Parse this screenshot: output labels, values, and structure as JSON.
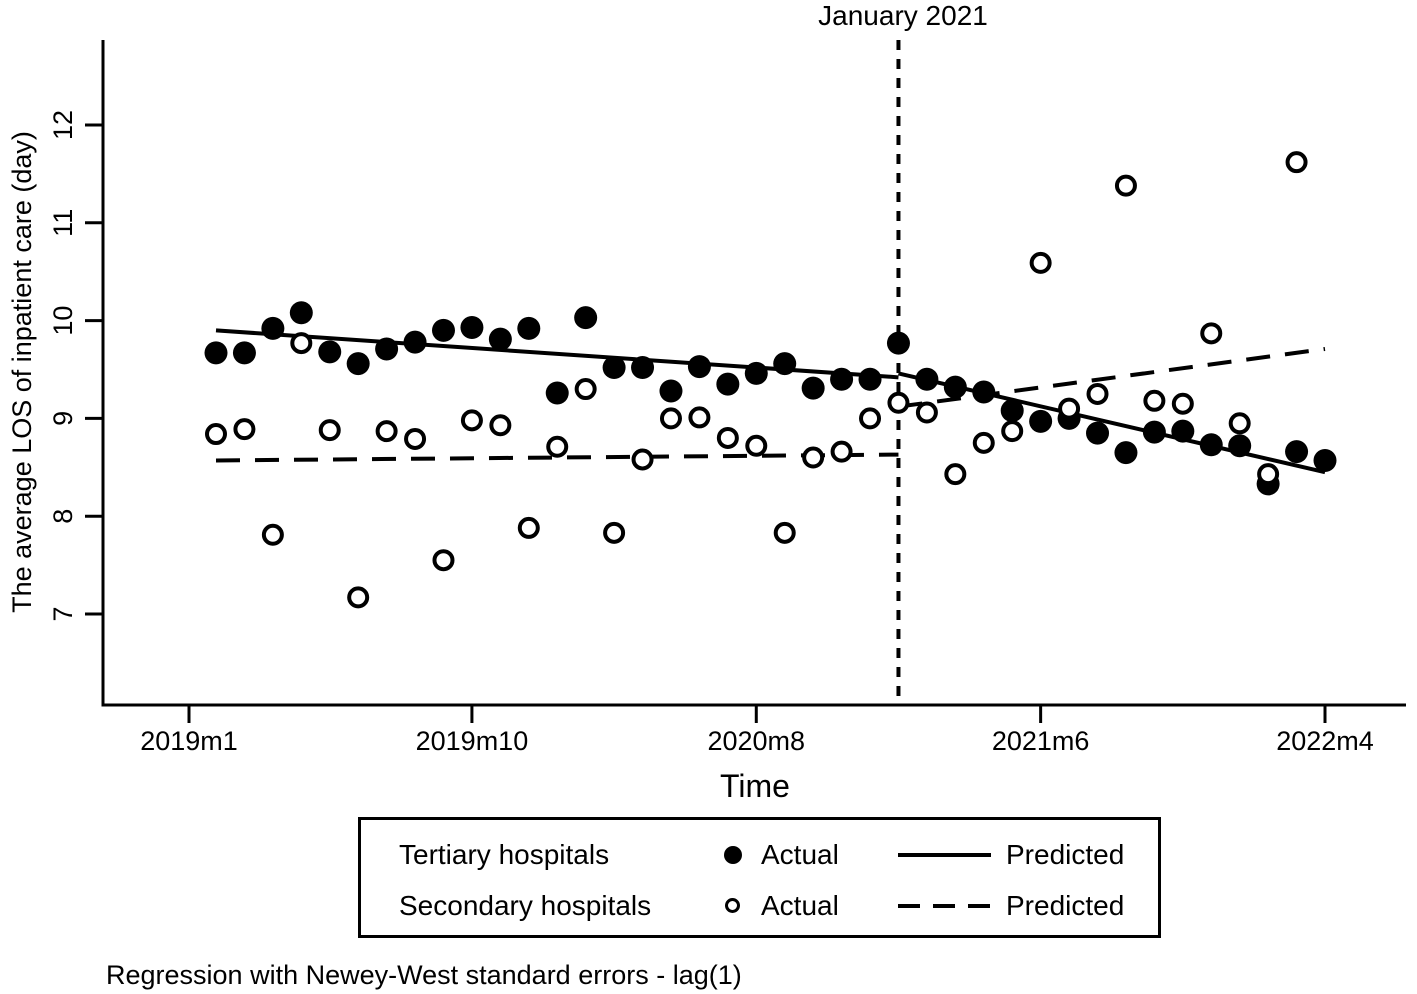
{
  "annotation": {
    "vline_label": "January 2021"
  },
  "axes": {
    "y_title": "The average LOS of inpatient care (day)",
    "x_title": "Time"
  },
  "legend": {
    "rows": [
      {
        "series": "Tertiary hospitals",
        "marker": "filled-circle",
        "actual": "Actual",
        "line": "solid",
        "predicted": "Predicted"
      },
      {
        "series": "Secondary hospitals",
        "marker": "open-circle",
        "actual": "Actual",
        "line": "dashed",
        "predicted": "Predicted"
      }
    ]
  },
  "note": "Regression with Newey-West standard errors - lag(1)",
  "colors": {
    "ink": "#000000",
    "background": "#ffffff"
  },
  "chart_data": {
    "type": "scatter",
    "x_unit": "monthly date",
    "months": [
      "2019m1",
      "2019m2",
      "2019m3",
      "2019m4",
      "2019m5",
      "2019m6",
      "2019m7",
      "2019m8",
      "2019m9",
      "2019m10",
      "2019m11",
      "2019m12",
      "2020m1",
      "2020m2",
      "2020m3",
      "2020m4",
      "2020m5",
      "2020m6",
      "2020m7",
      "2020m8",
      "2020m9",
      "2020m10",
      "2020m11",
      "2020m12",
      "2021m1",
      "2021m2",
      "2021m3",
      "2021m4",
      "2021m5",
      "2021m6",
      "2021m7",
      "2021m8",
      "2021m9",
      "2021m10",
      "2021m11",
      "2021m12",
      "2022m1",
      "2022m2",
      "2022m3",
      "2022m4"
    ],
    "series": [
      {
        "name": "Tertiary hospitals - Actual",
        "marker": "filled",
        "values": [
          9.67,
          9.67,
          9.92,
          10.08,
          9.68,
          9.56,
          9.71,
          9.78,
          9.9,
          9.93,
          9.81,
          9.92,
          9.26,
          10.03,
          9.52,
          9.52,
          9.28,
          9.53,
          9.35,
          9.46,
          9.56,
          9.31,
          9.4,
          9.4,
          9.77,
          9.4,
          9.32,
          9.27,
          9.08,
          8.97,
          9.0,
          8.85,
          8.65,
          8.86,
          8.87,
          8.73,
          8.72,
          8.33,
          8.66,
          8.57
        ]
      },
      {
        "name": "Secondary hospitals - Actual",
        "marker": "open",
        "values": [
          8.84,
          8.89,
          7.81,
          9.77,
          8.88,
          7.17,
          8.87,
          8.79,
          7.55,
          8.98,
          8.93,
          7.88,
          8.71,
          9.3,
          7.83,
          8.58,
          9.0,
          9.01,
          8.8,
          8.72,
          7.83,
          8.6,
          8.66,
          9.0,
          9.16,
          9.06,
          8.43,
          8.75,
          8.87,
          10.59,
          9.1,
          9.25,
          11.38,
          9.18,
          9.15,
          9.87,
          8.95,
          8.43,
          11.62,
          null
        ]
      }
    ],
    "fit_lines": [
      {
        "name": "Tertiary hospitals - Predicted",
        "style": "solid",
        "segments": [
          {
            "m0": 0,
            "v0": 9.9,
            "m1": 24,
            "v1": 9.42
          },
          {
            "m0": 24,
            "v0": 9.46,
            "m1": 39,
            "v1": 8.45
          }
        ]
      },
      {
        "name": "Secondary hospitals - Predicted",
        "style": "dashed",
        "segments": [
          {
            "m0": 0,
            "v0": 8.57,
            "m1": 24,
            "v1": 8.63
          },
          {
            "m0": 24,
            "v0": 9.12,
            "m1": 39,
            "v1": 9.71
          }
        ]
      }
    ],
    "vline": {
      "month_index": 24,
      "month": "2021m1",
      "label": "January 2021"
    },
    "y_ticks": [
      12,
      11,
      10,
      9,
      8,
      7
    ],
    "x_ticks": [
      {
        "label": "2019m1",
        "month_index": 0
      },
      {
        "label": "2019m10",
        "month_index": 9
      },
      {
        "label": "2020m8",
        "month_index": 19
      },
      {
        "label": "2021m6",
        "month_index": 29
      },
      {
        "label": "2022m4",
        "month_index": 39
      }
    ],
    "ylim": [
      6.1,
      12.85
    ],
    "xlabel": "Time",
    "ylabel": "The average LOS of inpatient care (day)",
    "grid": false,
    "legend_position": "bottom"
  }
}
